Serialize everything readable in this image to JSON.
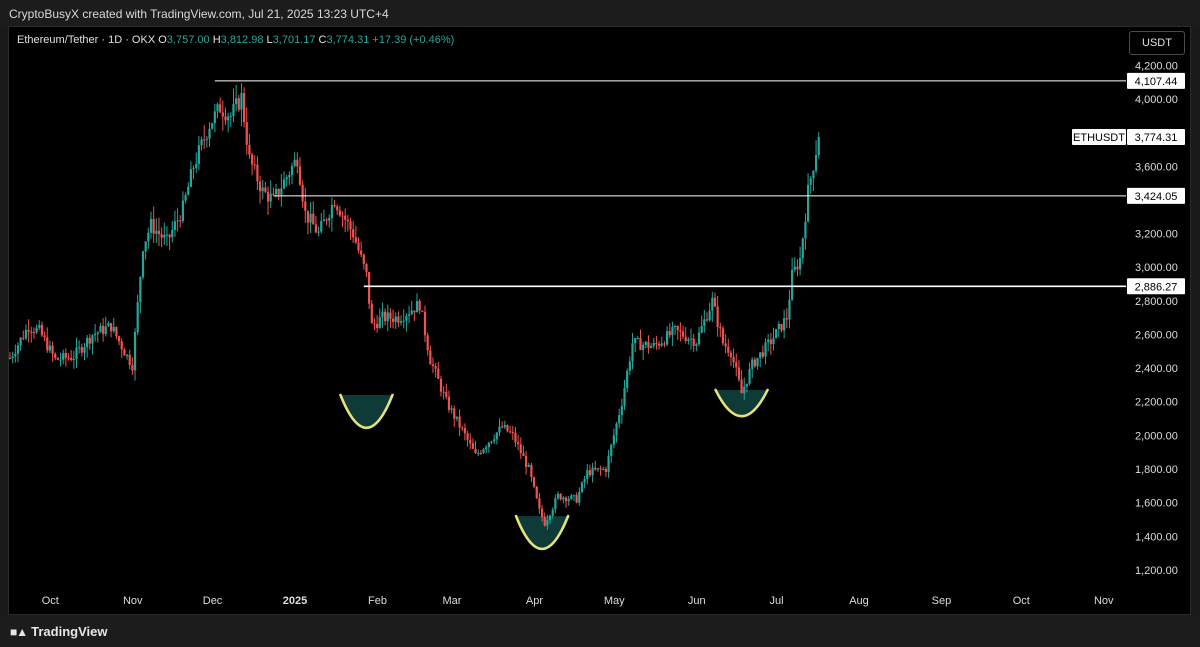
{
  "header": {
    "attribution": "CryptoBusyX created with TradingView.com, Jul 21, 2025 13:23 UTC+4"
  },
  "legend": {
    "pair": "Ethereum/Tether · 1D · OKX",
    "o_label": "O",
    "o_value": "3,757.00",
    "h_label": "H",
    "h_value": "3,812.98",
    "l_label": "L",
    "l_value": "3,701.17",
    "c_label": "C",
    "c_value": "3,774.31",
    "change": "+17.39 (+0.46%)"
  },
  "currency_button": "USDT",
  "footer": {
    "brand": "TradingView"
  },
  "colors": {
    "up": "#26a69a",
    "down": "#ef5350",
    "level": "#ffffff",
    "cup_stroke": "#e8e27a",
    "cup_fill": "#0e3b38",
    "background": "#000000"
  },
  "chart_data": {
    "type": "candlestick",
    "symbol": "ETHUSDT",
    "last_price": "3,774.31",
    "ylim": [
      1100,
      4300
    ],
    "y_ticks": [
      "4,200.00",
      "4,000.00",
      "3,600.00",
      "3,200.00",
      "3,000.00",
      "2,800.00",
      "2,600.00",
      "2,400.00",
      "2,200.00",
      "2,000.00",
      "1,800.00",
      "1,600.00",
      "1,400.00",
      "1,200.00"
    ],
    "x_ticks": [
      "Oct",
      "Nov",
      "Dec",
      "2025",
      "Feb",
      "Mar",
      "Apr",
      "May",
      "Jun",
      "Jul",
      "Aug",
      "Sep",
      "Oct",
      "Nov"
    ],
    "x_range": [
      "2024-09-20",
      "2025-11-12"
    ],
    "levels": [
      {
        "label": "4,107.44",
        "value": 4107.44,
        "from": "2024-12-06"
      },
      {
        "label": "3,424.05",
        "value": 3424.05,
        "from": "2024-12-28"
      },
      {
        "label": "2,886.27",
        "value": 2886.27,
        "from": "2025-01-31"
      }
    ],
    "cups": [
      {
        "center": "2025-02-01",
        "bottom": 2040,
        "top": 2240
      },
      {
        "center": "2025-04-08",
        "bottom": 1320,
        "top": 1520
      },
      {
        "center": "2025-06-22",
        "bottom": 2110,
        "top": 2270
      }
    ],
    "close_path": [
      [
        "2024-09-20",
        2460
      ],
      [
        "2024-09-27",
        2650
      ],
      [
        "2024-10-01",
        2620
      ],
      [
        "2024-10-07",
        2450
      ],
      [
        "2024-10-14",
        2470
      ],
      [
        "2024-10-21",
        2600
      ],
      [
        "2024-10-28",
        2650
      ],
      [
        "2024-11-03",
        2470
      ],
      [
        "2024-11-05",
        2420
      ],
      [
        "2024-11-09",
        3130
      ],
      [
        "2024-11-12",
        3250
      ],
      [
        "2024-11-18",
        3150
      ],
      [
        "2024-11-24",
        3350
      ],
      [
        "2024-11-28",
        3600
      ],
      [
        "2024-12-04",
        3850
      ],
      [
        "2024-12-08",
        3950
      ],
      [
        "2024-12-12",
        3900
      ],
      [
        "2024-12-16",
        4010
      ],
      [
        "2024-12-19",
        3640
      ],
      [
        "2024-12-24",
        3450
      ],
      [
        "2024-12-28",
        3400
      ],
      [
        "2025-01-06",
        3650
      ],
      [
        "2025-01-09",
        3320
      ],
      [
        "2025-01-14",
        3200
      ],
      [
        "2025-01-20",
        3400
      ],
      [
        "2025-01-27",
        3200
      ],
      [
        "2025-02-01",
        2950
      ],
      [
        "2025-02-03",
        2650
      ],
      [
        "2025-02-07",
        2700
      ],
      [
        "2025-02-13",
        2700
      ],
      [
        "2025-02-21",
        2780
      ],
      [
        "2025-02-25",
        2450
      ],
      [
        "2025-03-03",
        2200
      ],
      [
        "2025-03-10",
        2000
      ],
      [
        "2025-03-14",
        1880
      ],
      [
        "2025-03-24",
        2050
      ],
      [
        "2025-03-28",
        2000
      ],
      [
        "2025-04-03",
        1800
      ],
      [
        "2025-04-07",
        1550
      ],
      [
        "2025-04-09",
        1480
      ],
      [
        "2025-04-14",
        1640
      ],
      [
        "2025-04-21",
        1620
      ],
      [
        "2025-04-25",
        1780
      ],
      [
        "2025-05-02",
        1800
      ],
      [
        "2025-05-08",
        2200
      ],
      [
        "2025-05-12",
        2550
      ],
      [
        "2025-05-20",
        2530
      ],
      [
        "2025-05-28",
        2620
      ],
      [
        "2025-06-05",
        2560
      ],
      [
        "2025-06-11",
        2800
      ],
      [
        "2025-06-15",
        2550
      ],
      [
        "2025-06-18",
        2500
      ],
      [
        "2025-06-22",
        2250
      ],
      [
        "2025-06-26",
        2420
      ],
      [
        "2025-07-03",
        2560
      ],
      [
        "2025-07-09",
        2700
      ],
      [
        "2025-07-11",
        2950
      ],
      [
        "2025-07-14",
        3050
      ],
      [
        "2025-07-17",
        3450
      ],
      [
        "2025-07-21",
        3774
      ]
    ]
  }
}
